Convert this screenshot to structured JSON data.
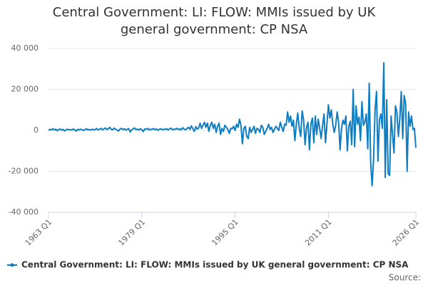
{
  "chart_data": {
    "type": "line",
    "title": "Central Government: LI: FLOW: MMIs issued by UK general government: CP NSA",
    "source_label": "Source:",
    "categories": [
      "1963 Q1",
      null,
      null,
      null,
      null,
      null,
      null,
      null,
      null,
      null,
      null,
      null,
      null,
      null,
      null,
      null,
      null,
      null,
      null,
      null,
      null,
      null,
      null,
      null,
      null,
      null,
      null,
      null,
      null,
      null,
      null,
      null,
      null,
      null,
      null,
      null,
      null,
      null,
      null,
      null,
      null,
      null,
      null,
      null,
      null,
      null,
      null,
      null,
      null,
      null,
      null,
      null,
      null,
      null,
      null,
      null,
      null,
      null,
      null,
      null,
      null,
      null,
      null,
      null,
      "1979 Q1",
      null,
      null,
      null,
      null,
      null,
      null,
      null,
      null,
      null,
      null,
      null,
      null,
      null,
      null,
      null,
      null,
      null,
      null,
      null,
      null,
      null,
      null,
      null,
      null,
      null,
      null,
      null,
      null,
      null,
      null,
      null,
      null,
      null,
      null,
      null,
      null,
      null,
      null,
      null,
      null,
      null,
      null,
      null,
      null,
      null,
      null,
      null,
      null,
      null,
      null,
      null,
      null,
      null,
      null,
      null,
      null,
      null,
      null,
      null,
      null,
      null,
      null,
      null,
      "1995 Q1",
      null,
      null,
      null,
      null,
      null,
      null,
      null,
      null,
      null,
      null,
      null,
      null,
      null,
      null,
      null,
      null,
      null,
      null,
      null,
      null,
      null,
      null,
      null,
      null,
      null,
      null,
      null,
      null,
      null,
      null,
      null,
      null,
      null,
      null,
      null,
      null,
      null,
      null,
      null,
      null,
      null,
      null,
      null,
      null,
      null,
      null,
      null,
      null,
      null,
      null,
      null,
      null,
      null,
      null,
      null,
      null,
      null,
      null,
      null,
      null,
      null,
      null,
      null,
      "2011 Q1",
      null,
      null,
      null,
      null,
      null,
      null,
      null,
      null,
      null,
      null,
      null,
      null,
      null,
      null,
      null,
      null,
      null,
      null,
      null,
      null,
      null,
      null,
      null,
      null,
      null,
      null,
      null,
      null,
      null,
      null,
      null,
      null,
      null,
      null,
      null,
      null,
      null,
      null,
      null,
      null,
      null,
      null,
      null,
      null,
      null,
      null,
      null,
      null,
      null,
      null,
      null,
      null,
      null,
      null,
      null,
      null,
      null,
      null,
      null,
      "2026 Q1"
    ],
    "series": [
      {
        "name": "Central Government: LI: FLOW: MMIs issued by UK general government: CP NSA",
        "color": "#0f7dc2",
        "values": [
          0,
          500,
          300,
          800,
          200,
          600,
          -200,
          400,
          700,
          100,
          500,
          -300,
          300,
          600,
          200,
          400,
          100,
          700,
          300,
          -400,
          500,
          200,
          600,
          300,
          -100,
          400,
          800,
          200,
          500,
          100,
          600,
          300,
          400,
          900,
          200,
          600,
          1000,
          300,
          700,
          1200,
          400,
          800,
          1500,
          500,
          300,
          1100,
          600,
          200,
          -300,
          600,
          1000,
          400,
          800,
          200,
          500,
          900,
          -800,
          300,
          700,
          1200,
          400,
          600,
          200,
          800,
          300,
          -600,
          700,
          500,
          1000,
          200,
          600,
          400,
          900,
          300,
          700,
          100,
          500,
          800,
          300,
          600,
          400,
          900,
          200,
          700,
          1100,
          300,
          600,
          500,
          1000,
          400,
          800,
          200,
          1300,
          600,
          300,
          900,
          1500,
          500,
          2200,
          800,
          -500,
          1800,
          600,
          1200,
          3500,
          1000,
          2500,
          4000,
          1500,
          3500,
          -500,
          2500,
          4000,
          1000,
          3000,
          -1000,
          2000,
          3500,
          -2000,
          1000,
          -500,
          2500,
          1500,
          500,
          -1500,
          1000,
          800,
          2000,
          0,
          3000,
          1500,
          5500,
          2500,
          -6500,
          1000,
          2000,
          -3000,
          -4000,
          1500,
          -1000,
          500,
          2000,
          -1500,
          1000,
          500,
          -1000,
          2500,
          1500,
          -2000,
          -500,
          1000,
          3000,
          500,
          1500,
          -1000,
          500,
          2000,
          1000,
          0,
          4000,
          1500,
          -500,
          3000,
          2500,
          9000,
          4000,
          7000,
          2000,
          5000,
          -5000,
          3000,
          8500,
          1000,
          -3000,
          9500,
          5000,
          -7000,
          1500,
          4000,
          -9500,
          3000,
          6000,
          -6000,
          7000,
          -2000,
          5500,
          1000,
          -4000,
          2500,
          8000,
          -6000,
          3000,
          12500,
          6000,
          10000,
          3000,
          -1000,
          2500,
          9000,
          4000,
          -9500,
          1000,
          5000,
          3000,
          7000,
          -10000,
          2000,
          4500,
          -7000,
          20000,
          -8000,
          12000,
          3000,
          6500,
          -5000,
          14000,
          2500,
          4000,
          8000,
          -9000,
          23000,
          -16000,
          -27000,
          -14000,
          10000,
          19000,
          -15000,
          5000,
          8000,
          1000,
          33000,
          -23000,
          15000,
          -21000,
          -22000,
          7000,
          -2000,
          -11000,
          12000,
          9000,
          -3000,
          6000,
          19000,
          -4000,
          17000,
          13000,
          -20000,
          9000,
          2000,
          7000,
          500,
          1000,
          -8500
        ]
      }
    ],
    "ylim": [
      -40000,
      40000
    ],
    "yticks": [
      {
        "value": -40000,
        "label": "-40 000"
      },
      {
        "value": -20000,
        "label": "-20 000"
      },
      0,
      {
        "value": 20000,
        "label": "20 000"
      },
      {
        "value": 40000,
        "label": "40 000"
      }
    ],
    "grid": true,
    "legend": "bottom"
  }
}
